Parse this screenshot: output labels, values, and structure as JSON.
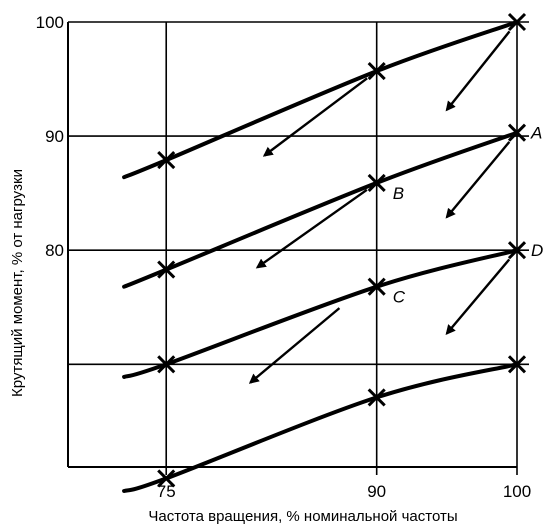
{
  "chart_data": {
    "type": "line",
    "xlabel": "Частота вращения, % номинальной частоты",
    "ylabel": "Крутящий момент, % от нагрузки",
    "x_ticks": [
      {
        "value": 75,
        "label": "75"
      },
      {
        "value": 90,
        "label": "90"
      },
      {
        "value": 100,
        "label": "100"
      }
    ],
    "y_ticks": [
      {
        "value": 100,
        "label": "100"
      },
      {
        "value": 90,
        "label": "90"
      },
      {
        "value": 80,
        "label": "80"
      }
    ],
    "y_gridlines": [
      100,
      90,
      80,
      70
    ],
    "x_gridlines": [
      75,
      90,
      100
    ],
    "xlim": [
      68,
      100
    ],
    "ylim": [
      61,
      100
    ],
    "grid": true,
    "series": [
      {
        "start": [
          72,
          86.4
        ],
        "points": [
          [
            75,
            87.9
          ],
          [
            90,
            95.7
          ],
          [
            100,
            100
          ]
        ]
      },
      {
        "start": [
          72,
          76.8
        ],
        "points": [
          [
            75,
            78.3
          ],
          [
            90,
            85.9
          ],
          [
            100,
            90.3
          ]
        ]
      },
      {
        "start": [
          72,
          68.9
        ],
        "points": [
          [
            75,
            70
          ],
          [
            90,
            76.8
          ],
          [
            100,
            80
          ]
        ]
      },
      {
        "start": [
          72,
          58.9
        ],
        "points": [
          [
            75,
            60
          ],
          [
            90,
            67.1
          ],
          [
            100,
            70
          ]
        ]
      }
    ],
    "point_labels": [
      {
        "text": "A",
        "x": 100,
        "y": 90.3
      },
      {
        "text": "B",
        "x": 90,
        "y": 85.9
      },
      {
        "text": "D",
        "x": 100,
        "y": 80
      },
      {
        "text": "C",
        "x": 90,
        "y": 76.8
      }
    ],
    "arrows": [
      {
        "from": [
          100,
          100
        ],
        "to": [
          95,
          92.3
        ]
      },
      {
        "from": [
          90,
          95.7
        ],
        "to": [
          82,
          88.3
        ]
      },
      {
        "from": [
          100,
          90.3
        ],
        "to": [
          95,
          82.9
        ]
      },
      {
        "from": [
          90,
          85.9
        ],
        "to": [
          81.5,
          78.5
        ]
      },
      {
        "from": [
          100,
          80
        ],
        "to": [
          95,
          72.7
        ]
      },
      {
        "from": [
          88,
          75.6
        ],
        "to": [
          81,
          68.4
        ]
      }
    ]
  }
}
